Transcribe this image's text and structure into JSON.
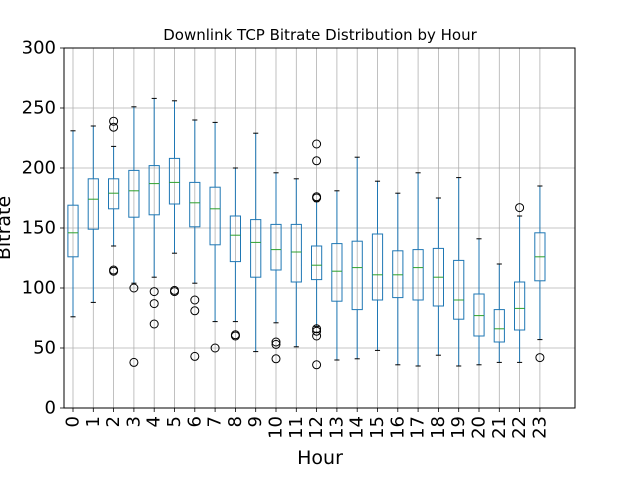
{
  "chart_data": {
    "type": "box",
    "title": "Downlink TCP Bitrate Distribution by Hour",
    "xlabel": "Hour",
    "ylabel": "Bitrate",
    "ylim": [
      0,
      300
    ],
    "yticks": [
      "0",
      "50",
      "100",
      "150",
      "200",
      "250",
      "300"
    ],
    "grid": true,
    "colors": {
      "box": "#1f77b4",
      "median": "#2ca02c",
      "whisker": "#1f77b4",
      "cap": "#000000",
      "flier": "#000000",
      "grid": "#b0b0b0"
    },
    "boxes": [
      {
        "hour": "0",
        "whislo": 76,
        "q1": 126,
        "med": 146,
        "q3": 169,
        "whishi": 231,
        "fliers": []
      },
      {
        "hour": "1",
        "whislo": 88,
        "q1": 149,
        "med": 174,
        "q3": 191,
        "whishi": 235,
        "fliers": []
      },
      {
        "hour": "2",
        "whislo": 135,
        "q1": 166,
        "med": 179,
        "q3": 191,
        "whishi": 218,
        "fliers": [
          114,
          115,
          234,
          239
        ]
      },
      {
        "hour": "3",
        "whislo": 104,
        "q1": 159,
        "med": 181,
        "q3": 198,
        "whishi": 251,
        "fliers": [
          38,
          100
        ]
      },
      {
        "hour": "4",
        "whislo": 109,
        "q1": 161,
        "med": 187,
        "q3": 202,
        "whishi": 258,
        "fliers": [
          70,
          87,
          97
        ]
      },
      {
        "hour": "5",
        "whislo": 129,
        "q1": 170,
        "med": 188,
        "q3": 208,
        "whishi": 256,
        "fliers": [
          97,
          98
        ]
      },
      {
        "hour": "6",
        "whislo": 104,
        "q1": 151,
        "med": 171,
        "q3": 188,
        "whishi": 240,
        "fliers": [
          43,
          81,
          90
        ]
      },
      {
        "hour": "7",
        "whislo": 72,
        "q1": 136,
        "med": 166,
        "q3": 184,
        "whishi": 238,
        "fliers": [
          50
        ]
      },
      {
        "hour": "8",
        "whislo": 72,
        "q1": 122,
        "med": 144,
        "q3": 160,
        "whishi": 200,
        "fliers": [
          60,
          61
        ]
      },
      {
        "hour": "9",
        "whislo": 47,
        "q1": 109,
        "med": 138,
        "q3": 157,
        "whishi": 229,
        "fliers": []
      },
      {
        "hour": "10",
        "whislo": 71,
        "q1": 115,
        "med": 132,
        "q3": 153,
        "whishi": 196,
        "fliers": [
          41,
          53,
          55
        ]
      },
      {
        "hour": "11",
        "whislo": 51,
        "q1": 105,
        "med": 130,
        "q3": 153,
        "whishi": 191,
        "fliers": []
      },
      {
        "hour": "12",
        "whislo": 68,
        "q1": 107,
        "med": 119,
        "q3": 135,
        "whishi": 172,
        "fliers": [
          36,
          60,
          64,
          66,
          175,
          176,
          206,
          220
        ]
      },
      {
        "hour": "13",
        "whislo": 40,
        "q1": 89,
        "med": 114,
        "q3": 137,
        "whishi": 181,
        "fliers": []
      },
      {
        "hour": "14",
        "whislo": 41,
        "q1": 82,
        "med": 117,
        "q3": 139,
        "whishi": 209,
        "fliers": []
      },
      {
        "hour": "15",
        "whislo": 48,
        "q1": 90,
        "med": 111,
        "q3": 145,
        "whishi": 189,
        "fliers": []
      },
      {
        "hour": "16",
        "whislo": 36,
        "q1": 92,
        "med": 111,
        "q3": 131,
        "whishi": 179,
        "fliers": []
      },
      {
        "hour": "17",
        "whislo": 35,
        "q1": 90,
        "med": 117,
        "q3": 132,
        "whishi": 196,
        "fliers": []
      },
      {
        "hour": "18",
        "whislo": 44,
        "q1": 85,
        "med": 109,
        "q3": 133,
        "whishi": 175,
        "fliers": []
      },
      {
        "hour": "19",
        "whislo": 35,
        "q1": 74,
        "med": 90,
        "q3": 123,
        "whishi": 192,
        "fliers": []
      },
      {
        "hour": "20",
        "whislo": 36,
        "q1": 60,
        "med": 77,
        "q3": 95,
        "whishi": 141,
        "fliers": []
      },
      {
        "hour": "21",
        "whislo": 38,
        "q1": 55,
        "med": 66,
        "q3": 82,
        "whishi": 120,
        "fliers": []
      },
      {
        "hour": "22",
        "whislo": 38,
        "q1": 65,
        "med": 83,
        "q3": 105,
        "whishi": 160,
        "fliers": [
          167
        ]
      },
      {
        "hour": "23",
        "whislo": 57,
        "q1": 106,
        "med": 126,
        "q3": 146,
        "whishi": 185,
        "fliers": [
          42
        ]
      }
    ]
  }
}
